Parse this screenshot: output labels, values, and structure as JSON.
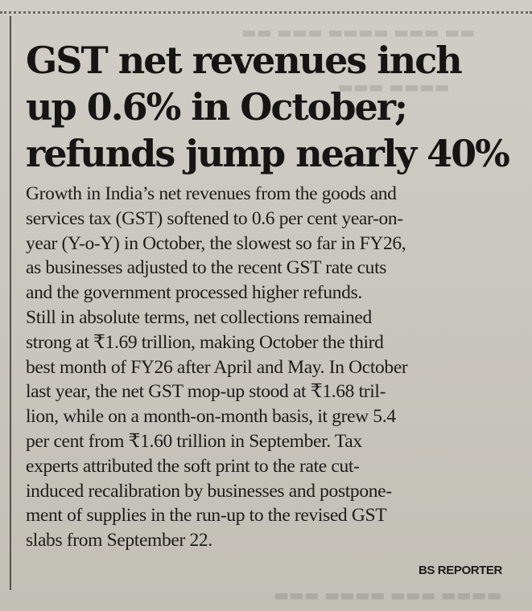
{
  "article": {
    "headline": [
      "GST net revenues inch",
      "up 0.6% in October;",
      "refunds jump nearly 40%"
    ],
    "body": [
      "Growth in India’s net revenues from the goods and",
      "services tax (GST) softened to 0.6 per cent year-on-",
      "year (Y-o-Y) in October, the slowest so far in FY26,",
      "as businesses adjusted to the recent GST rate cuts",
      "and the government processed higher refunds.",
      "Still in absolute terms, net collections remained",
      "strong at ₹1.69 trillion, making October the third",
      "best month of FY26 after April and May. In October",
      "last year, the net GST mop-up stood at ₹1.68 tril-",
      "lion, while on a month-on-month basis, it grew 5.4",
      "per cent from ₹1.60 trillion in September. Tax",
      "experts attributed the soft print to the rate cut-",
      "induced recalibration by businesses and postpone-",
      "ment of supplies in the run-up to the revised GST",
      "slabs from September 22."
    ],
    "byline": "BS REPORTER"
  }
}
